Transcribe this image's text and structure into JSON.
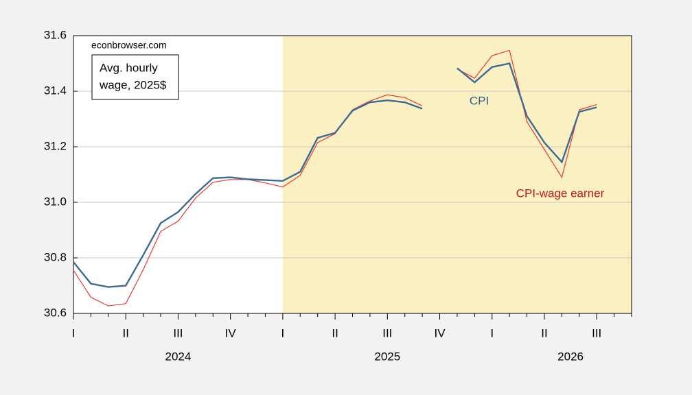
{
  "chart_data": {
    "type": "line",
    "source": "econbrowser.com",
    "box_label": [
      "Avg. hourly",
      "wage, 2025$"
    ],
    "categories": [
      "I",
      null,
      null,
      "II",
      null,
      null,
      "III",
      null,
      null,
      "IV",
      null,
      null,
      "I",
      null,
      null,
      "II",
      null,
      null,
      "III",
      null,
      null,
      "IV",
      null,
      null,
      "I",
      null,
      null,
      "II",
      null,
      null,
      "III",
      null,
      null
    ],
    "year_labels": [
      "2024",
      "2025",
      "2026"
    ],
    "series": [
      {
        "name": "CPI",
        "color": "#3a6b94",
        "label_color": "#2e5f8a",
        "values": [
          30.785,
          30.707,
          30.695,
          30.7,
          30.81,
          30.925,
          30.965,
          31.03,
          31.087,
          31.09,
          31.083,
          31.08,
          31.077,
          31.11,
          31.232,
          31.25,
          31.33,
          31.36,
          31.367,
          31.36,
          31.337,
          null,
          31.483,
          31.432,
          31.487,
          31.5,
          31.31,
          31.215,
          31.145,
          31.326,
          31.342,
          null,
          null
        ]
      },
      {
        "name": "CPI-wage earner",
        "color": "#e8382f",
        "label_color": "#c0181a",
        "values": [
          30.755,
          30.658,
          30.627,
          30.635,
          30.757,
          30.895,
          30.932,
          31.015,
          31.072,
          31.082,
          31.082,
          31.07,
          31.055,
          31.097,
          31.215,
          31.247,
          31.333,
          31.365,
          31.387,
          31.377,
          31.347,
          null,
          31.48,
          31.447,
          31.528,
          31.547,
          31.29,
          31.19,
          31.09,
          31.333,
          31.352,
          null,
          null
        ]
      }
    ],
    "ylim": [
      30.6,
      31.6
    ],
    "yticks": [
      30.6,
      30.8,
      {
        "value": 31,
        "label": "31.0"
      },
      31.2,
      31.4,
      31.6
    ],
    "grid": true,
    "shaded_region": {
      "from": 12,
      "color": "#fbf0c1"
    }
  }
}
